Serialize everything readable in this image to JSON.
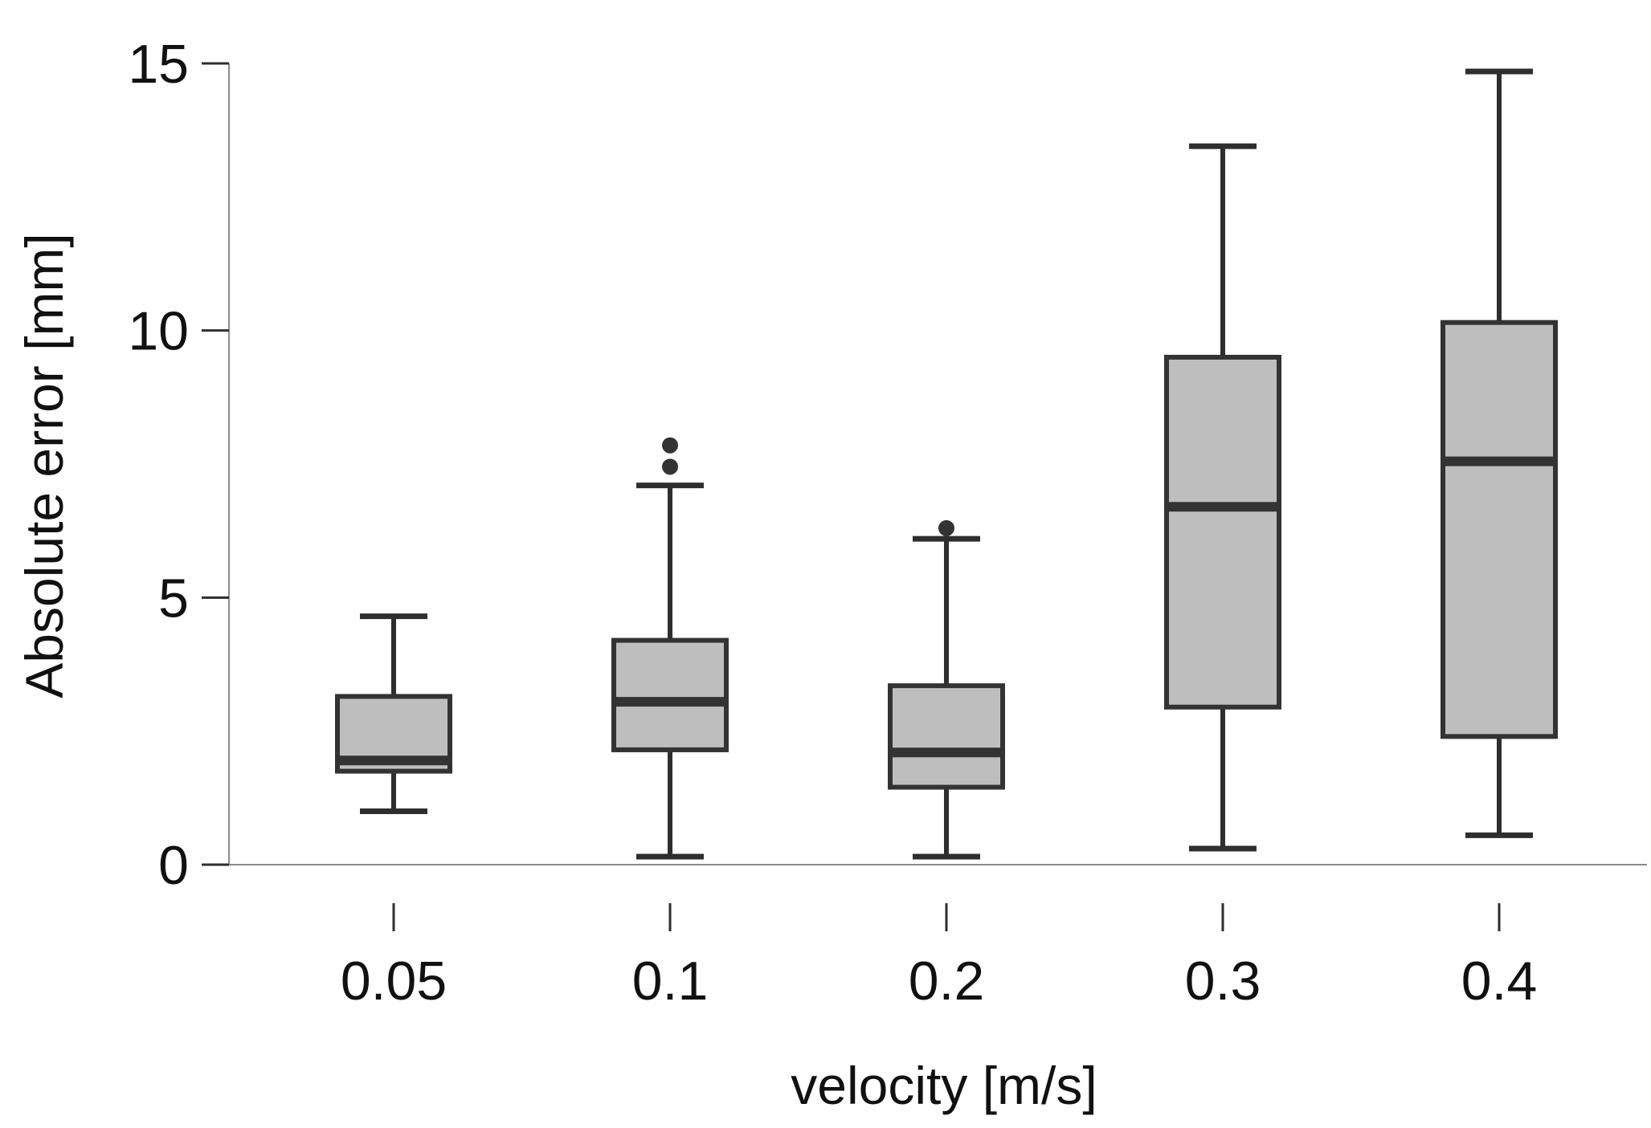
{
  "chart_data": {
    "type": "boxplot",
    "title": "",
    "xlabel": "velocity [m/s]",
    "ylabel": "Absolute error [mm]",
    "ylim": [
      0,
      15
    ],
    "yticks": [
      0,
      5,
      10,
      15
    ],
    "grid": false,
    "categories": [
      "0.05",
      "0.1",
      "0.2",
      "0.3",
      "0.4"
    ],
    "boxes": [
      {
        "category": "0.05",
        "whisker_low": 1.0,
        "q1": 1.75,
        "median": 1.95,
        "q3": 3.15,
        "whisker_high": 4.65,
        "outliers": []
      },
      {
        "category": "0.1",
        "whisker_low": 0.15,
        "q1": 2.15,
        "median": 3.05,
        "q3": 4.2,
        "whisker_high": 7.1,
        "outliers": [
          7.45,
          7.85
        ]
      },
      {
        "category": "0.2",
        "whisker_low": 0.15,
        "q1": 1.45,
        "median": 2.1,
        "q3": 3.35,
        "whisker_high": 6.1,
        "outliers": [
          6.3
        ]
      },
      {
        "category": "0.3",
        "whisker_low": 0.3,
        "q1": 2.95,
        "median": 6.7,
        "q3": 9.5,
        "whisker_high": 13.45,
        "outliers": []
      },
      {
        "category": "0.4",
        "whisker_low": 0.55,
        "q1": 2.4,
        "median": 7.55,
        "q3": 10.15,
        "whisker_high": 14.85,
        "outliers": []
      }
    ]
  }
}
